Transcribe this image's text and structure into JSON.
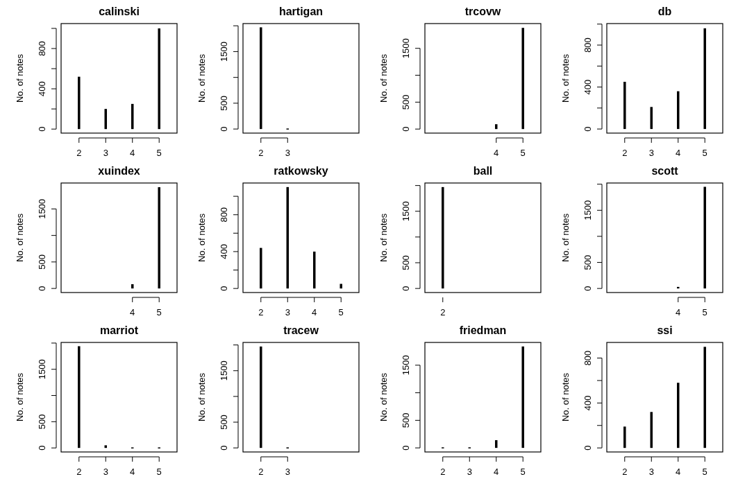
{
  "chart_data": [
    {
      "type": "bar",
      "title": "calinski",
      "ylabel": "No. of notes",
      "x": [
        2,
        3,
        4,
        5
      ],
      "values": [
        520,
        200,
        250,
        1000
      ],
      "color": "#000000",
      "xlim": [
        1.33,
        5.67
      ],
      "ylim": [
        -40,
        1048
      ],
      "xticks": [
        2,
        3,
        4,
        5
      ],
      "yticks": [
        0,
        {
          "value": 200,
          "label": null
        },
        400,
        {
          "value": 600,
          "label": null
        },
        800,
        {
          "value": 1000,
          "label": null
        }
      ]
    },
    {
      "type": "bar",
      "title": "hartigan",
      "ylabel": "No. of notes",
      "x": [
        2,
        3
      ],
      "values": [
        1970,
        10
      ],
      "color": "#000000",
      "xlim": [
        1.33,
        5.67
      ],
      "ylim": [
        -79,
        2043
      ],
      "xticks": [
        2,
        3
      ],
      "yticks": [
        0,
        500,
        {
          "value": 1000,
          "label": null
        },
        1500,
        {
          "value": 2000,
          "label": null
        }
      ]
    },
    {
      "type": "bar",
      "title": "trcovw",
      "ylabel": "No. of notes",
      "x": [
        4,
        5
      ],
      "values": [
        90,
        1880
      ],
      "color": "#000000",
      "xlim": [
        1.33,
        5.67
      ],
      "ylim": [
        -75,
        1960
      ],
      "xticks": [
        4,
        5
      ],
      "yticks": [
        0,
        500,
        {
          "value": 1000,
          "label": null
        },
        1500
      ]
    },
    {
      "type": "bar",
      "title": "db",
      "ylabel": "No. of notes",
      "x": [
        2,
        3,
        4,
        5
      ],
      "values": [
        450,
        210,
        360,
        960
      ],
      "color": "#000000",
      "xlim": [
        1.33,
        5.67
      ],
      "ylim": [
        -39,
        1005
      ],
      "xticks": [
        2,
        3,
        4,
        5
      ],
      "yticks": [
        0,
        {
          "value": 200,
          "label": null
        },
        400,
        {
          "value": 600,
          "label": null
        },
        800,
        {
          "value": 1000,
          "label": null
        }
      ]
    },
    {
      "type": "bar",
      "title": "xuindex",
      "ylabel": "No. of notes",
      "x": [
        4,
        5
      ],
      "values": [
        80,
        1910
      ],
      "color": "#000000",
      "xlim": [
        1.33,
        5.67
      ],
      "ylim": [
        -77,
        1989
      ],
      "xticks": [
        4,
        5
      ],
      "yticks": [
        0,
        500,
        {
          "value": 1000,
          "label": null
        },
        1500
      ]
    },
    {
      "type": "bar",
      "title": "ratkowsky",
      "ylabel": "No. of notes",
      "x": [
        2,
        3,
        4,
        5
      ],
      "values": [
        440,
        1100,
        400,
        50
      ],
      "color": "#000000",
      "xlim": [
        1.33,
        5.67
      ],
      "ylim": [
        -44,
        1144
      ],
      "xticks": [
        2,
        3,
        4,
        5
      ],
      "yticks": [
        0,
        {
          "value": 200,
          "label": null
        },
        400,
        {
          "value": 600,
          "label": null
        },
        800,
        {
          "value": 1000,
          "label": null
        }
      ]
    },
    {
      "type": "bar",
      "title": "ball",
      "ylabel": "No. of notes",
      "categories": [
        "2"
      ],
      "values": [
        1970
      ],
      "color": "#000000",
      "ylim": [
        -79,
        2049
      ],
      "yticks": [
        0,
        500,
        {
          "value": 1000,
          "label": null
        },
        1500,
        {
          "value": 2000,
          "label": null
        }
      ]
    },
    {
      "type": "bar",
      "title": "scott",
      "ylabel": "No. of notes",
      "x": [
        4,
        5
      ],
      "values": [
        30,
        1950
      ],
      "color": "#000000",
      "xlim": [
        1.33,
        5.67
      ],
      "ylim": [
        -78,
        2023
      ],
      "xticks": [
        4,
        5
      ],
      "yticks": [
        0,
        500,
        {
          "value": 1000,
          "label": null
        },
        1500,
        {
          "value": 2000,
          "label": null
        }
      ]
    },
    {
      "type": "bar",
      "title": "marriot",
      "ylabel": "No. of notes",
      "x": [
        2,
        3,
        4,
        5
      ],
      "values": [
        1940,
        50,
        10,
        10
      ],
      "color": "#000000",
      "xlim": [
        1.33,
        5.67
      ],
      "ylim": [
        -77,
        2012
      ],
      "xticks": [
        2,
        3,
        4,
        5
      ],
      "yticks": [
        0,
        500,
        {
          "value": 1000,
          "label": null
        },
        1500,
        {
          "value": 2000,
          "label": null
        }
      ]
    },
    {
      "type": "bar",
      "title": "tracew",
      "ylabel": "No. of notes",
      "x": [
        2,
        3
      ],
      "values": [
        1970,
        10
      ],
      "color": "#000000",
      "xlim": [
        1.33,
        5.67
      ],
      "ylim": [
        -79,
        2049
      ],
      "xticks": [
        2,
        3
      ],
      "yticks": [
        0,
        500,
        {
          "value": 1000,
          "label": null
        },
        1500,
        {
          "value": 2000,
          "label": null
        }
      ]
    },
    {
      "type": "bar",
      "title": "friedman",
      "ylabel": "No. of notes",
      "x": [
        2,
        3,
        4,
        5
      ],
      "values": [
        10,
        10,
        140,
        1840
      ],
      "color": "#000000",
      "xlim": [
        1.33,
        5.67
      ],
      "ylim": [
        -74,
        1913
      ],
      "xticks": [
        2,
        3,
        4,
        5
      ],
      "yticks": [
        0,
        500,
        {
          "value": 1000,
          "label": null
        },
        1500
      ]
    },
    {
      "type": "bar",
      "title": "ssi",
      "ylabel": "No. of notes",
      "x": [
        2,
        3,
        4,
        5
      ],
      "values": [
        190,
        320,
        580,
        900
      ],
      "color": "#000000",
      "xlim": [
        1.33,
        5.67
      ],
      "ylim": [
        -36,
        939
      ],
      "xticks": [
        2,
        3,
        4,
        5
      ],
      "yticks": [
        0,
        {
          "value": 200,
          "label": null
        },
        400,
        {
          "value": 600,
          "label": null
        },
        800
      ]
    }
  ]
}
